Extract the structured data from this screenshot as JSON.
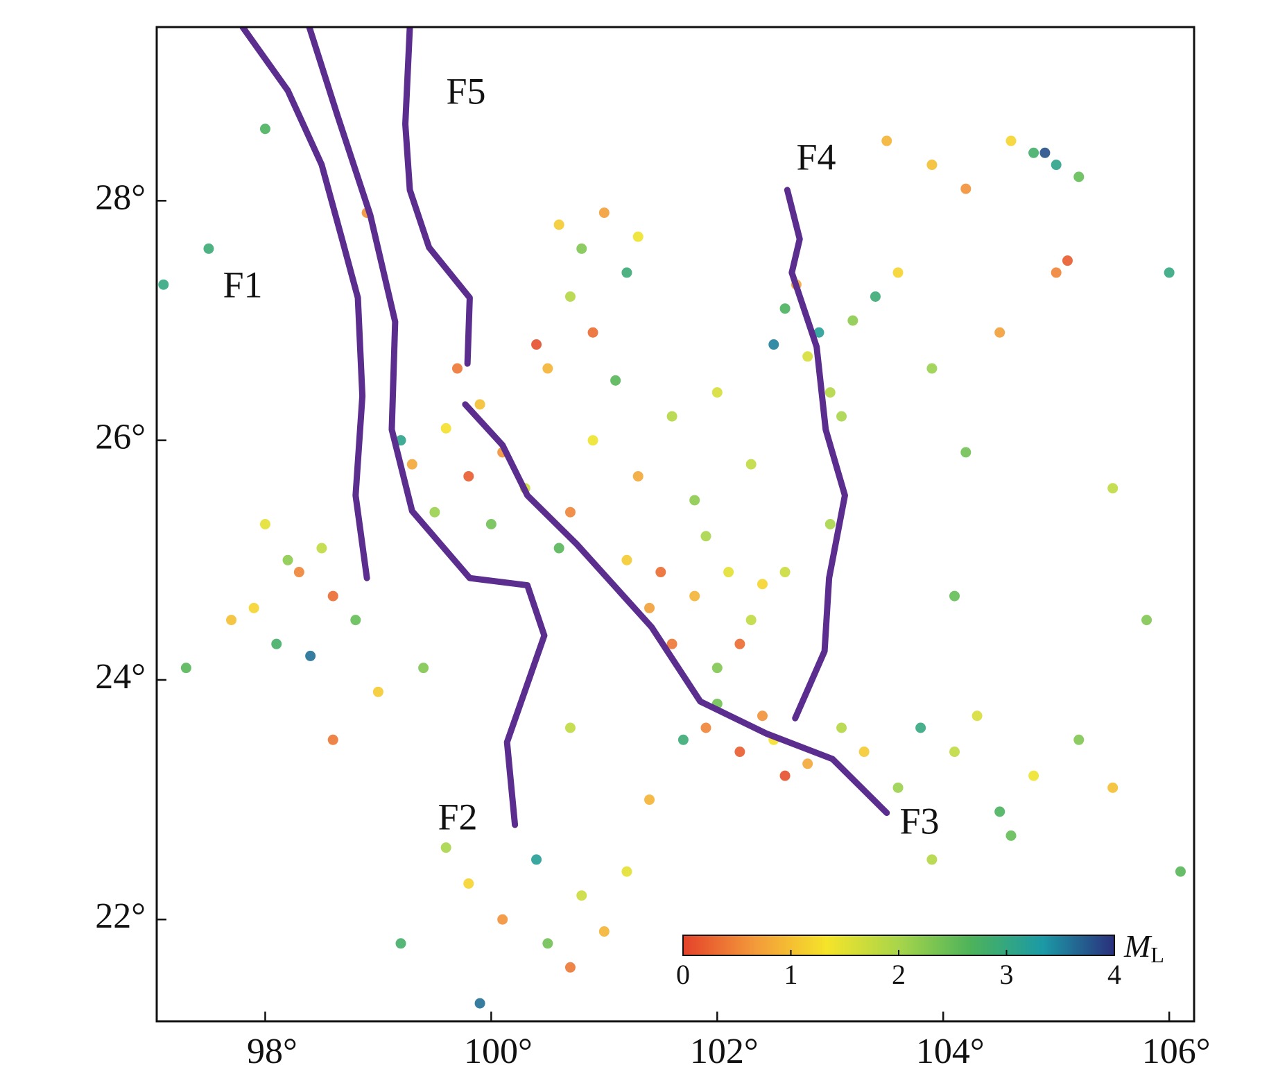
{
  "chart_data": {
    "type": "scatter",
    "x": [
      97.9,
      98.1,
      98.3,
      98.5,
      98.2,
      97.7,
      98.6,
      98.4,
      98.0,
      98.8,
      99.3,
      99.6,
      99.8,
      99.5,
      99.9,
      100.1,
      99.2,
      100.3,
      99.7,
      100.0,
      100.6,
      100.8,
      101.0,
      100.7,
      100.9,
      101.2,
      100.5,
      101.3,
      100.4,
      101.1,
      102.6,
      102.9,
      103.2,
      102.8,
      103.4,
      102.7,
      103.0,
      102.5,
      103.6,
      103.1,
      104.8,
      105.0,
      104.6,
      105.2,
      104.2,
      103.9,
      105.1,
      105.0,
      104.9,
      103.5,
      101.8,
      102.1,
      102.3,
      101.6,
      102.0,
      102.4,
      101.9,
      101.4,
      102.2,
      102.6,
      101.9,
      102.2,
      102.5,
      102.8,
      103.1,
      102.0,
      102.6,
      103.3,
      101.7,
      102.4,
      103.8,
      104.1,
      104.5,
      104.8,
      103.6,
      104.3,
      105.2,
      104.6,
      103.9,
      105.5,
      99.8,
      100.1,
      100.5,
      100.8,
      101.0,
      99.6,
      100.4,
      101.2,
      99.9,
      100.7,
      97.5,
      97.1,
      98.0,
      106.0,
      105.8,
      106.1,
      97.3,
      99.2,
      105.5,
      104.2,
      100.9,
      101.3,
      101.6,
      100.7,
      101.8,
      101.2,
      102.3,
      101.5,
      100.6,
      102.0,
      98.6,
      99.0,
      99.4,
      100.7,
      101.4,
      103.9,
      104.5,
      104.1,
      103.0,
      98.9
    ],
    "y": [
      24.6,
      24.3,
      24.9,
      25.1,
      25.0,
      24.5,
      24.7,
      24.2,
      25.3,
      24.5,
      25.8,
      26.1,
      25.7,
      25.4,
      26.3,
      25.9,
      26.0,
      25.6,
      26.6,
      25.3,
      27.8,
      27.6,
      27.9,
      27.2,
      26.9,
      27.4,
      26.6,
      27.7,
      26.8,
      26.5,
      27.1,
      26.9,
      27.0,
      26.7,
      27.2,
      27.3,
      26.4,
      26.8,
      27.4,
      26.2,
      28.4,
      28.3,
      28.5,
      28.2,
      28.1,
      28.3,
      27.5,
      27.4,
      28.4,
      28.5,
      24.7,
      24.9,
      24.5,
      24.3,
      24.1,
      24.8,
      25.2,
      24.6,
      24.3,
      24.9,
      23.6,
      23.4,
      23.5,
      23.3,
      23.6,
      23.8,
      23.2,
      23.4,
      23.5,
      23.7,
      23.6,
      23.4,
      22.9,
      23.2,
      23.1,
      23.7,
      23.5,
      22.7,
      22.5,
      23.1,
      22.3,
      22.0,
      21.8,
      22.2,
      21.9,
      22.6,
      22.5,
      22.4,
      21.3,
      21.6,
      27.6,
      27.3,
      28.6,
      27.4,
      24.5,
      22.4,
      24.1,
      21.8,
      25.6,
      25.9,
      26.0,
      25.7,
      26.2,
      25.4,
      25.5,
      25.0,
      25.8,
      24.9,
      25.1,
      26.4,
      23.5,
      23.9,
      24.1,
      23.6,
      23.0,
      26.6,
      26.9,
      24.7,
      25.3,
      27.9
    ],
    "values": [
      1.2,
      2.8,
      0.5,
      1.8,
      2.2,
      1.0,
      0.3,
      3.6,
      1.5,
      2.5,
      0.8,
      1.3,
      0.2,
      2.1,
      1.0,
      0.6,
      3.1,
      1.7,
      0.4,
      2.4,
      1.1,
      2.3,
      0.7,
      1.9,
      0.3,
      2.9,
      0.9,
      1.4,
      0.1,
      2.6,
      2.7,
      3.2,
      2.2,
      1.6,
      2.9,
      0.8,
      1.9,
      3.5,
      1.2,
      2.0,
      2.8,
      3.1,
      1.2,
      2.5,
      0.6,
      1.0,
      0.2,
      0.5,
      3.8,
      0.9,
      0.9,
      1.5,
      1.8,
      0.4,
      2.3,
      1.2,
      2.0,
      0.7,
      0.3,
      1.7,
      0.5,
      0.2,
      1.3,
      0.8,
      1.9,
      2.4,
      0.1,
      1.1,
      2.9,
      0.6,
      3.0,
      1.8,
      2.7,
      1.4,
      2.1,
      1.6,
      2.3,
      2.5,
      1.9,
      1.0,
      1.2,
      0.6,
      2.4,
      1.7,
      0.9,
      2.0,
      3.2,
      1.5,
      3.6,
      0.4,
      2.9,
      3.0,
      2.7,
      3.0,
      2.3,
      2.6,
      2.6,
      2.8,
      1.8,
      2.4,
      1.4,
      0.8,
      1.9,
      0.5,
      2.2,
      1.1,
      1.8,
      0.3,
      2.6,
      1.6,
      0.4,
      1.1,
      2.3,
      1.8,
      0.9,
      2.1,
      0.7,
      2.5,
      2.0,
      0.6
    ],
    "xlim": [
      97.04,
      106.22
    ],
    "ylim": [
      21.15,
      29.45
    ],
    "xticks": [
      {
        "value": 98,
        "label": "98°"
      },
      {
        "value": 100,
        "label": "100°"
      },
      {
        "value": 102,
        "label": "102°"
      },
      {
        "value": 104,
        "label": "104°"
      },
      {
        "value": 106,
        "label": "106°"
      }
    ],
    "yticks": [
      {
        "value": 22,
        "label": "22°"
      },
      {
        "value": 24,
        "label": "24°"
      },
      {
        "value": 26,
        "label": "26°"
      },
      {
        "value": 28,
        "label": "28°"
      }
    ],
    "colormap": [
      "#e4422a",
      "#f39a3a",
      "#f5e42a",
      "#a8d54a",
      "#4db35a",
      "#1b9aa6",
      "#2b2f7c"
    ],
    "clim": [
      0,
      4
    ],
    "cticks": [
      0,
      1,
      2,
      3,
      4
    ],
    "colorbar_label": {
      "main": "M",
      "sub": "L"
    },
    "fault_color": "#5b2d8e",
    "faults": [
      {
        "name": "F1",
        "lon": [
          97.8,
          98.2,
          98.5,
          98.68,
          98.82,
          98.86,
          98.8,
          98.9
        ],
        "lat": [
          29.45,
          28.92,
          28.3,
          27.68,
          27.19,
          26.37,
          25.54,
          24.85
        ]
      },
      {
        "name": "F2",
        "lon": [
          98.39,
          98.64,
          98.93,
          99.15,
          99.12,
          99.3,
          99.81,
          100.32,
          100.47,
          100.14,
          100.21
        ],
        "lat": [
          29.45,
          28.71,
          27.88,
          26.99,
          26.09,
          25.41,
          24.85,
          24.79,
          24.37,
          23.48,
          22.79
        ]
      },
      {
        "name": "F3",
        "lon": [
          99.77,
          100.1,
          100.32,
          100.76,
          101.42,
          101.85,
          102.44,
          103.02,
          103.5
        ],
        "lat": [
          26.3,
          25.96,
          25.54,
          25.13,
          24.44,
          23.82,
          23.55,
          23.34,
          22.89
        ]
      },
      {
        "name": "F4",
        "lon": [
          102.62,
          102.73,
          102.66,
          102.88,
          102.96,
          103.13,
          102.99,
          102.95,
          102.69
        ],
        "lat": [
          28.09,
          27.68,
          27.4,
          26.78,
          26.09,
          25.54,
          24.85,
          24.24,
          23.68
        ]
      },
      {
        "name": "F5",
        "lon": [
          99.28,
          99.24,
          99.28,
          99.45,
          99.81,
          99.79
        ],
        "lat": [
          29.45,
          28.64,
          28.09,
          27.61,
          27.19,
          26.64
        ]
      }
    ]
  }
}
